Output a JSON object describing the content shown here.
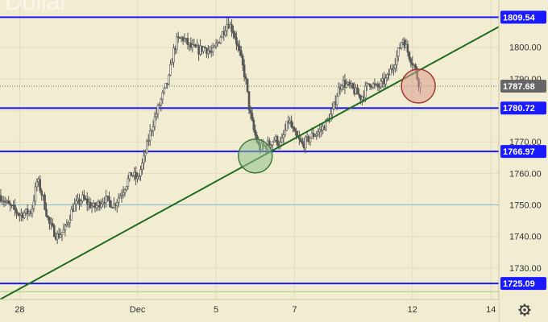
{
  "chart_data": {
    "type": "candlestick",
    "watermark": "Dollar",
    "x_ticks": [
      {
        "label": "28",
        "t": 0
      },
      {
        "label": "Dec",
        "t": 3
      },
      {
        "label": "5",
        "t": 5
      },
      {
        "label": "7",
        "t": 7
      },
      {
        "label": "12",
        "t": 10
      },
      {
        "label": "14",
        "t": 12
      }
    ],
    "x_range": [
      -0.5,
      12.2
    ],
    "y_ticks": [
      1730,
      1740,
      1750,
      1760,
      1770,
      1780,
      1790,
      1800
    ],
    "ylim": [
      1720,
      1815
    ],
    "grid": true,
    "horizontal_levels": [
      {
        "value": 1809.54,
        "label": "1809.54",
        "color": "#1a1aff"
      },
      {
        "value": 1780.72,
        "label": "1780.72",
        "color": "#1a1aff"
      },
      {
        "value": 1766.97,
        "label": "1766.97",
        "color": "#1a1aff"
      },
      {
        "value": 1725.09,
        "label": "1725.09",
        "color": "#1a1aff"
      }
    ],
    "thin_lines": [
      {
        "value": 1750,
        "color": "#7fb7c9"
      },
      {
        "value": 1722.5,
        "color": "#9ad27a"
      }
    ],
    "current_price": {
      "value": 1787.68,
      "label": "1787.68",
      "color": "#666666"
    },
    "trendline": {
      "t1": -0.5,
      "y1": 1720,
      "t2": 12.2,
      "y2": 1806.5,
      "color": "#1e6b1e"
    },
    "circles": [
      {
        "t": 6.0,
        "y": 1765.5,
        "r": 21,
        "fill": "#8fc08a",
        "stroke": "#3f7a3a"
      },
      {
        "t": 10.15,
        "y": 1787.7,
        "r": 21,
        "fill": "#d99a8e",
        "stroke": "#a03a35"
      }
    ],
    "anchors": [
      [
        -0.5,
        1753
      ],
      [
        -0.3,
        1750
      ],
      [
        0.0,
        1747
      ],
      [
        0.3,
        1748
      ],
      [
        0.45,
        1758
      ],
      [
        0.6,
        1752
      ],
      [
        0.75,
        1744
      ],
      [
        0.95,
        1740
      ],
      [
        1.15,
        1742
      ],
      [
        1.35,
        1749
      ],
      [
        1.6,
        1752
      ],
      [
        1.9,
        1749
      ],
      [
        2.15,
        1752
      ],
      [
        2.4,
        1750
      ],
      [
        2.6,
        1754
      ],
      [
        2.85,
        1760
      ],
      [
        3.0,
        1758
      ],
      [
        3.15,
        1764
      ],
      [
        3.3,
        1772
      ],
      [
        3.45,
        1778
      ],
      [
        3.65,
        1785
      ],
      [
        3.8,
        1790
      ],
      [
        3.9,
        1798
      ],
      [
        4.0,
        1802
      ],
      [
        4.15,
        1803
      ],
      [
        4.35,
        1800
      ],
      [
        4.55,
        1799
      ],
      [
        4.7,
        1800
      ],
      [
        4.9,
        1798
      ],
      [
        5.1,
        1803
      ],
      [
        5.3,
        1808
      ],
      [
        5.45,
        1805
      ],
      [
        5.6,
        1798
      ],
      [
        5.75,
        1790
      ],
      [
        5.85,
        1780
      ],
      [
        5.95,
        1774
      ],
      [
        6.1,
        1768
      ],
      [
        6.3,
        1769
      ],
      [
        6.5,
        1771
      ],
      [
        6.65,
        1769
      ],
      [
        6.85,
        1777
      ],
      [
        7.0,
        1772
      ],
      [
        7.2,
        1769
      ],
      [
        7.45,
        1772
      ],
      [
        7.7,
        1774
      ],
      [
        7.95,
        1779
      ],
      [
        8.1,
        1786
      ],
      [
        8.2,
        1789
      ],
      [
        8.45,
        1787
      ],
      [
        8.7,
        1784
      ],
      [
        8.9,
        1789
      ],
      [
        9.1,
        1787
      ],
      [
        9.35,
        1790
      ],
      [
        9.6,
        1797
      ],
      [
        9.75,
        1803
      ],
      [
        9.9,
        1798
      ],
      [
        10.05,
        1794
      ],
      [
        10.15,
        1789
      ],
      [
        10.22,
        1788
      ]
    ],
    "y_axis_position": "right"
  }
}
